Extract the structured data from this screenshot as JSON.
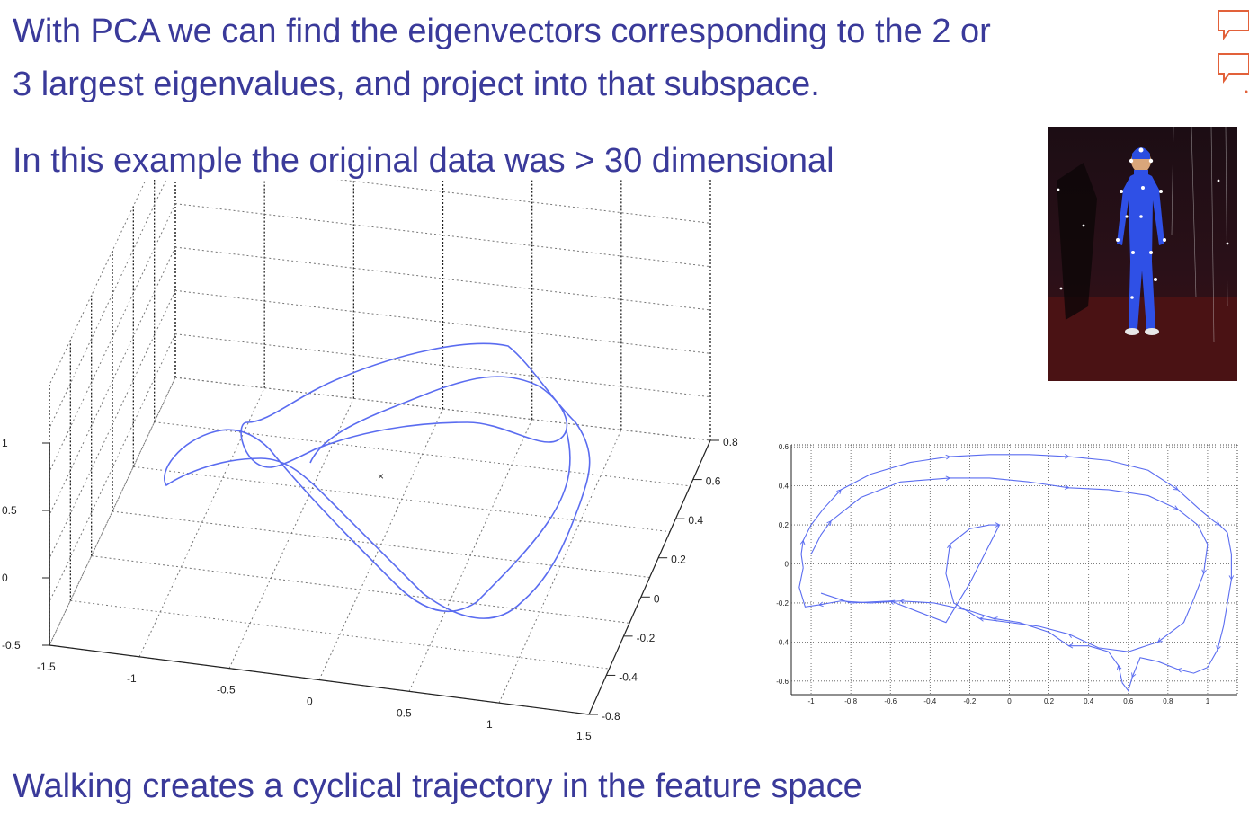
{
  "slide": {
    "line1": "With PCA we can find the eigenvectors corresponding to the 2 or",
    "line2": "3 largest eigenvalues, and project into that subspace.",
    "line3": "In this example the original data was > 30 dimensional",
    "footer": "Walking creates a cyclical trajectory in the feature space"
  },
  "icons": [
    "speech-bubble-icon",
    "speech-bubble-icon"
  ],
  "colors": {
    "text": "#3a3a9a",
    "trajectory": "#5a6cf0",
    "accent": "#e2613a"
  },
  "chart_data": [
    {
      "type": "line",
      "projection": "3d",
      "x_ticks": [
        "-1.5",
        "-1",
        "-0.5",
        "0",
        "0.5",
        "1",
        "1.5"
      ],
      "y_ticks": [
        "-0.8",
        "-0.4",
        "-0.2",
        "0",
        "0.2",
        "0.4",
        "0.6",
        "0.8"
      ],
      "z_ticks": [
        "-0.5",
        "0",
        "0.5",
        "1"
      ],
      "xlim": [
        -1.5,
        1.5
      ],
      "ylim": [
        -0.8,
        0.8
      ],
      "zlim": [
        -0.5,
        1
      ],
      "grid": true
    },
    {
      "type": "line",
      "projection": "2d",
      "x_ticks": [
        "-1",
        "-0.8",
        "-0.6",
        "-0.4",
        "-0.2",
        "0",
        "0.2",
        "0.4",
        "0.6",
        "0.8",
        "1"
      ],
      "y_ticks": [
        "-0.6",
        "-0.4",
        "-0.2",
        "0",
        "0.2",
        "0.4",
        "0.6"
      ],
      "xlim": [
        -1.1,
        1.15
      ],
      "ylim": [
        -0.67,
        0.61
      ],
      "grid": true,
      "series": [
        {
          "x": [
            -1.04,
            -1.05,
            -1.04,
            -1.0,
            -0.94,
            -0.85,
            -0.7,
            -0.5,
            -0.3,
            -0.1,
            0.1,
            0.3,
            0.5,
            0.7,
            0.85,
            0.97,
            1.03,
            1.06,
            1.1,
            1.12,
            1.12,
            1.1,
            1.08,
            1.05,
            1.0,
            0.93,
            0.85,
            0.75,
            0.66,
            0.62,
            0.6,
            0.57,
            0.55,
            0.5,
            0.4,
            0.3,
            0.2,
            0.05,
            -0.08,
            -0.2,
            -0.38,
            -0.55,
            -0.7,
            -0.85,
            -0.96,
            -1.03,
            -1.06,
            -1.04
          ],
          "y": [
            -0.02,
            0.05,
            0.12,
            0.2,
            0.28,
            0.38,
            0.46,
            0.52,
            0.55,
            0.56,
            0.56,
            0.55,
            0.53,
            0.48,
            0.38,
            0.27,
            0.22,
            0.2,
            0.16,
            0.05,
            -0.08,
            -0.2,
            -0.32,
            -0.44,
            -0.53,
            -0.56,
            -0.54,
            -0.5,
            -0.48,
            -0.58,
            -0.65,
            -0.61,
            -0.52,
            -0.45,
            -0.42,
            -0.42,
            -0.35,
            -0.3,
            -0.28,
            -0.24,
            -0.2,
            -0.19,
            -0.2,
            -0.19,
            -0.21,
            -0.22,
            -0.12,
            -0.02
          ]
        },
        {
          "x": [
            -1.0,
            -0.95,
            -0.9,
            -0.75,
            -0.55,
            -0.3,
            -0.1,
            0.1,
            0.3,
            0.5,
            0.7,
            0.85,
            0.95,
            1.0,
            0.98,
            0.93,
            0.88,
            0.75,
            0.6,
            0.45,
            0.3,
            0.15,
            0.0,
            -0.15,
            -0.28,
            -0.32,
            -0.3,
            -0.2,
            -0.1,
            -0.05,
            -0.2,
            -0.32,
            -0.6,
            -0.8,
            -0.95
          ],
          "y": [
            0.05,
            0.15,
            0.22,
            0.34,
            0.42,
            0.44,
            0.44,
            0.42,
            0.39,
            0.38,
            0.35,
            0.28,
            0.2,
            0.1,
            -0.05,
            -0.18,
            -0.3,
            -0.4,
            -0.45,
            -0.43,
            -0.36,
            -0.32,
            -0.3,
            -0.28,
            -0.2,
            -0.05,
            0.1,
            0.18,
            0.2,
            0.2,
            -0.1,
            -0.3,
            -0.19,
            -0.2,
            -0.15
          ]
        }
      ]
    }
  ]
}
